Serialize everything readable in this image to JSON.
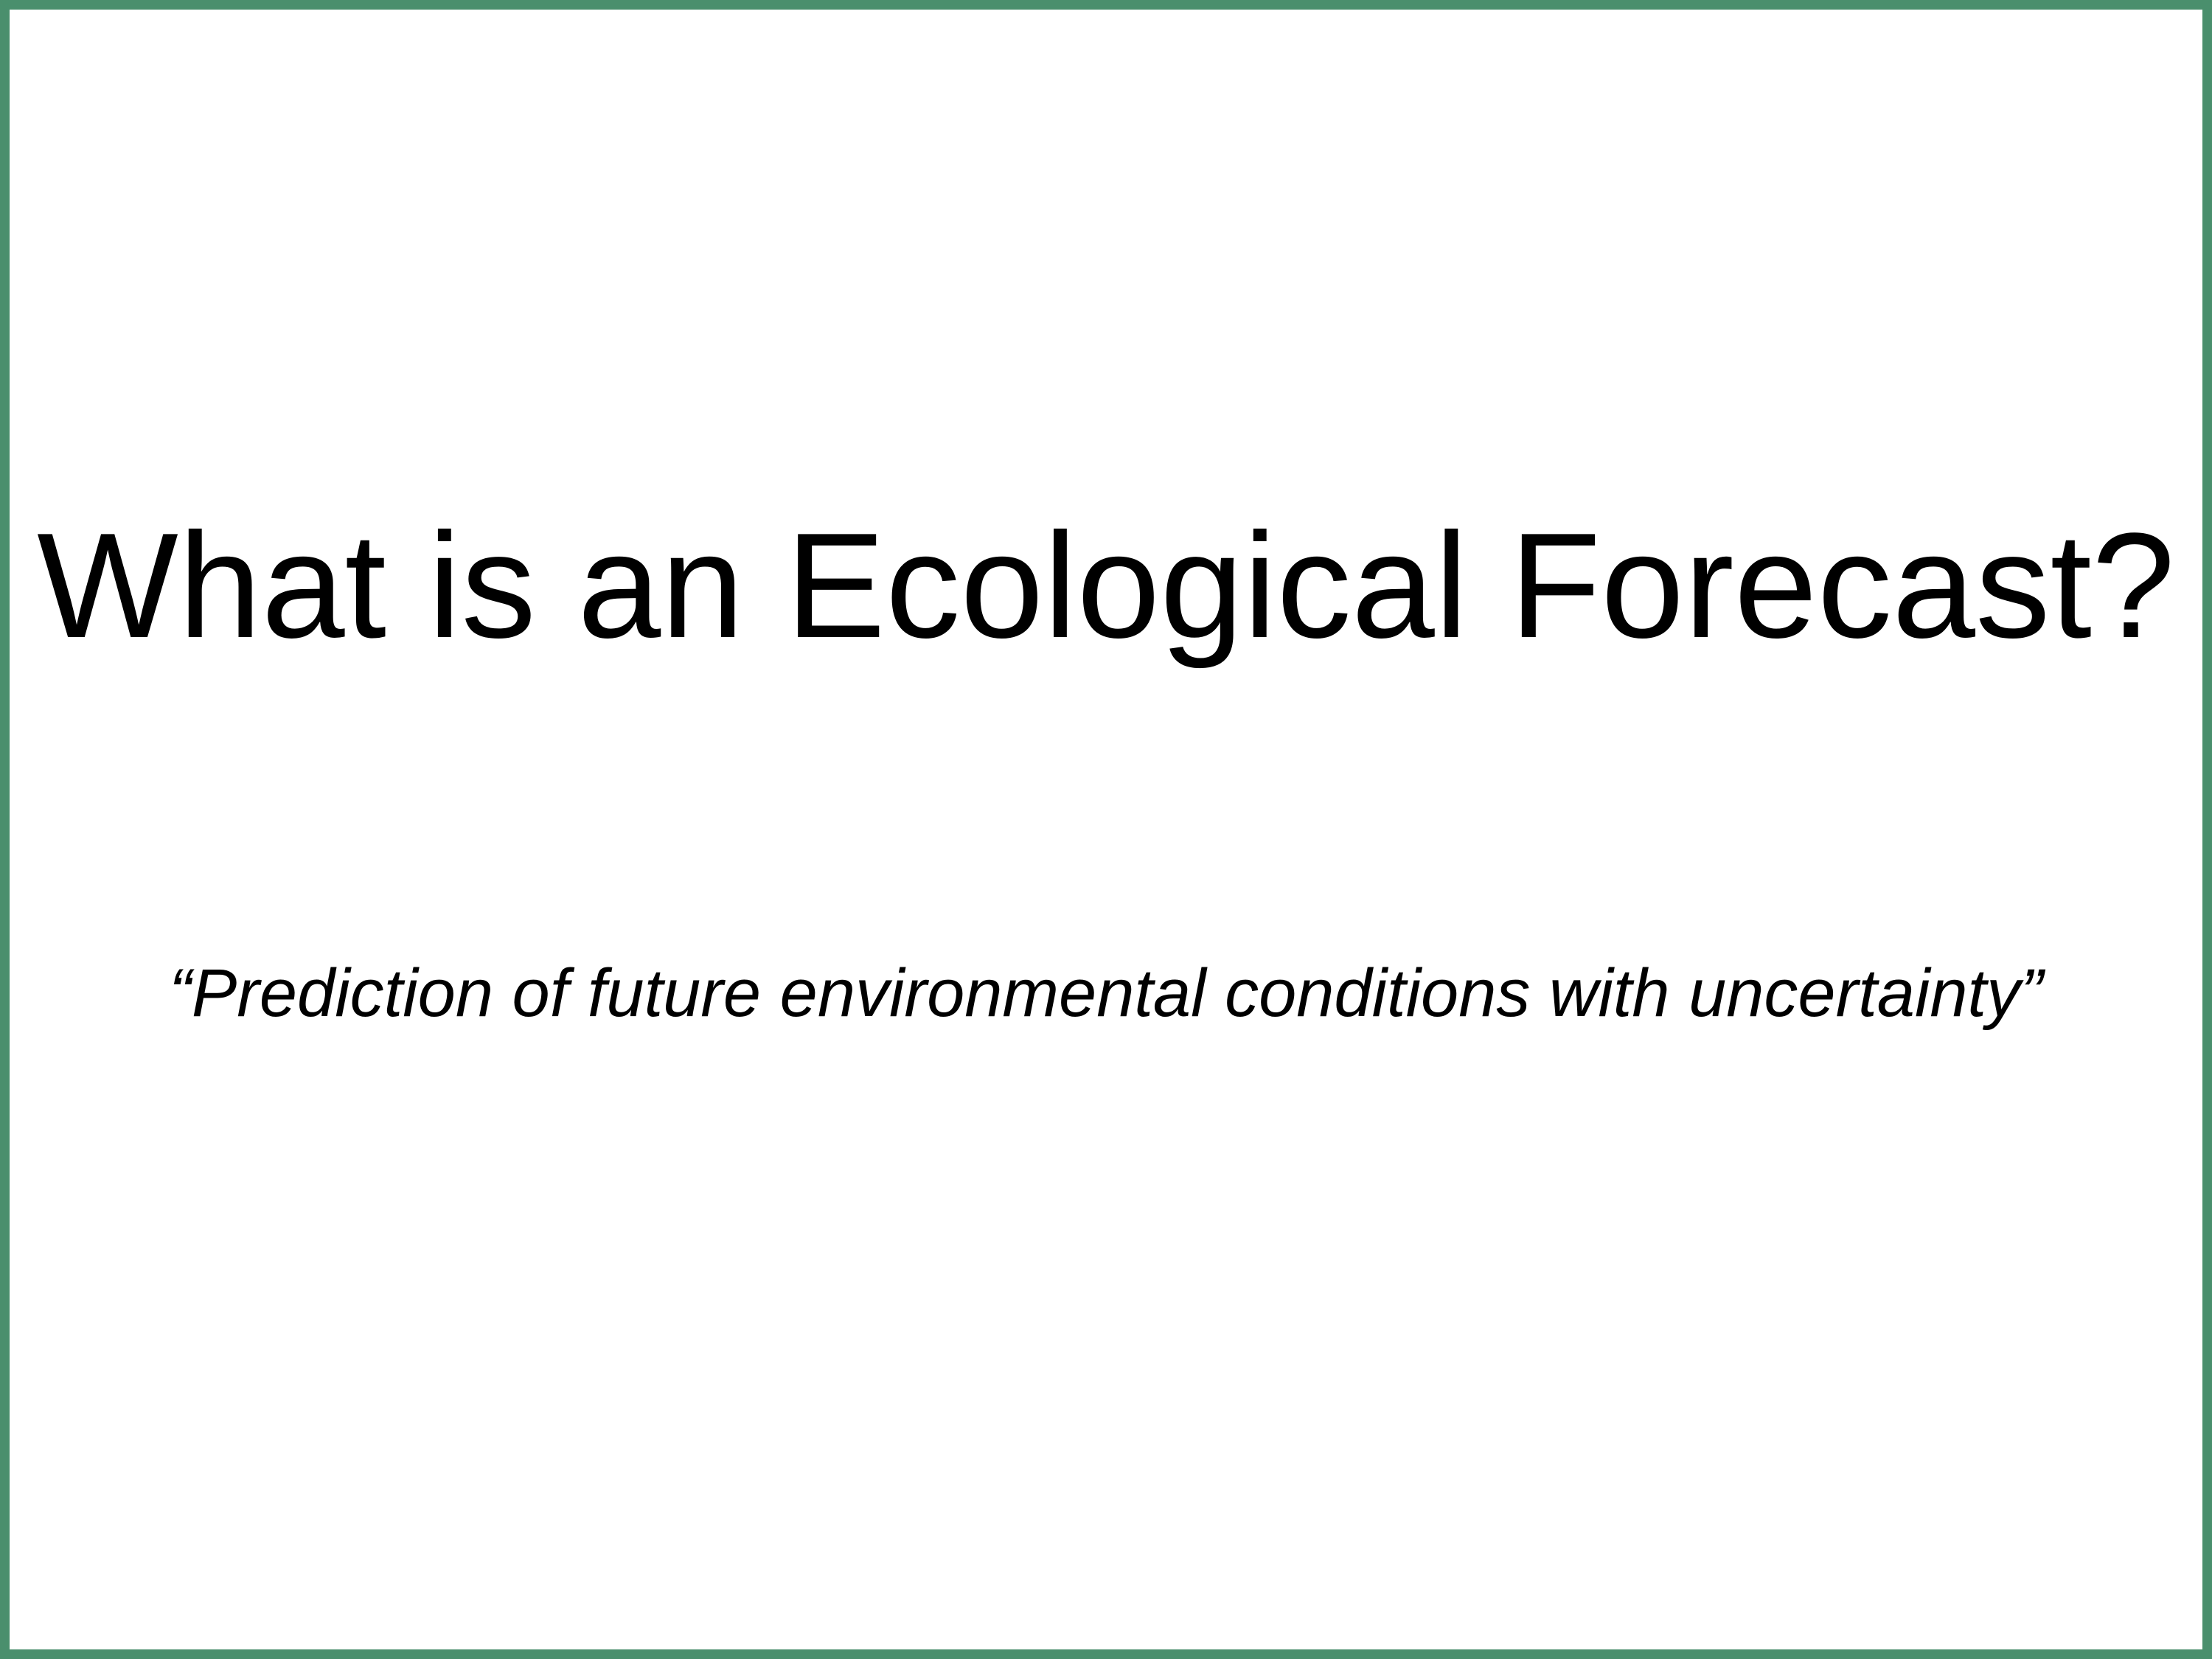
{
  "slide": {
    "title": "What is an Ecological Forecast?",
    "definition": "“Prediction of future environmental conditions with uncertainty”",
    "border_color": "#4a8f6d",
    "text_color": "#000000",
    "background_color": "#ffffff"
  }
}
